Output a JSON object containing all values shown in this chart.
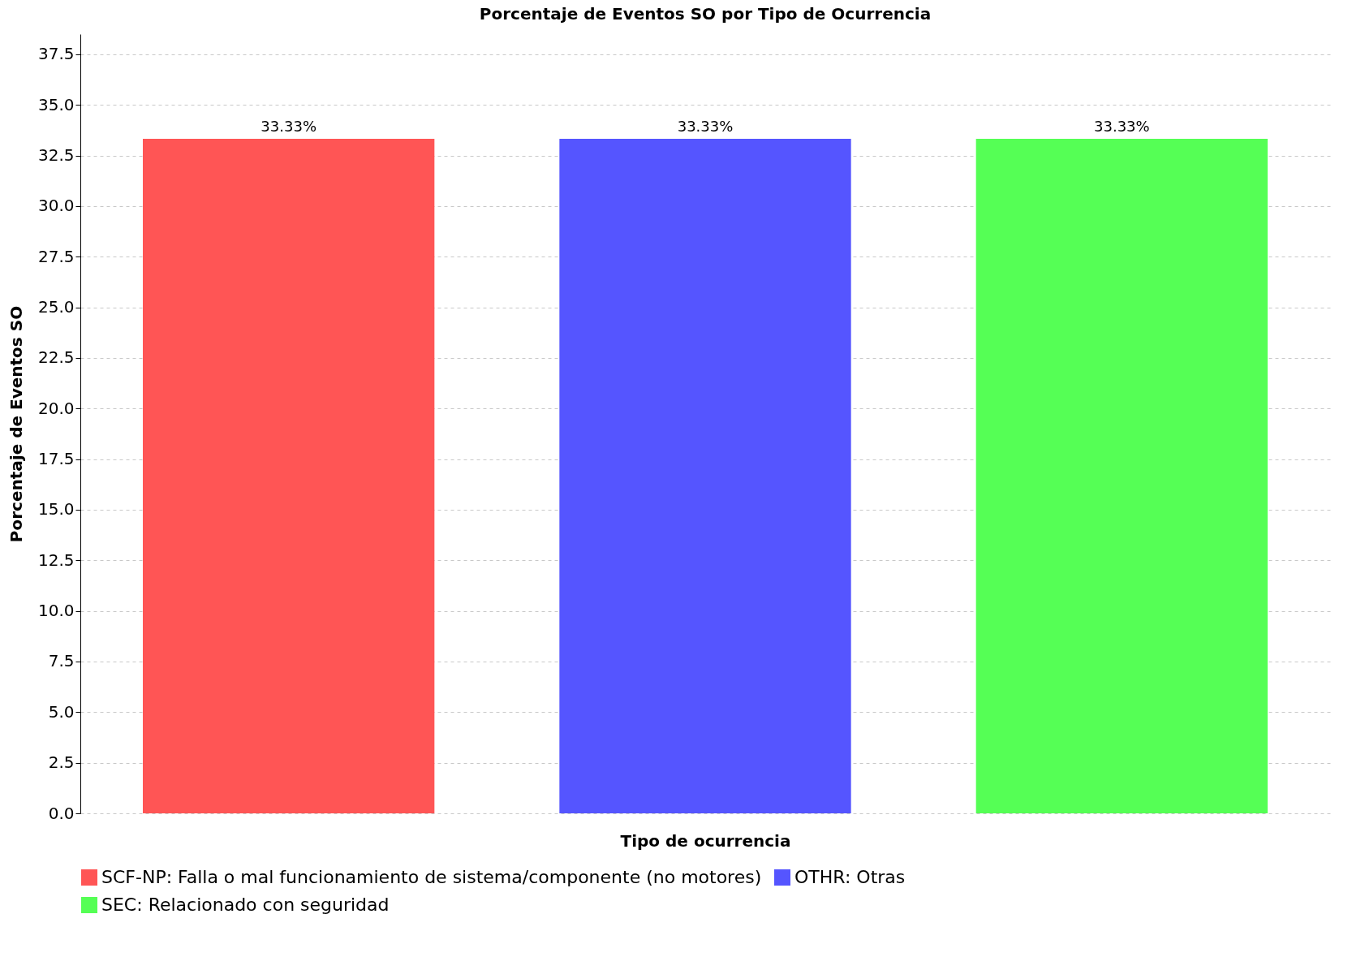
{
  "chart_data": {
    "type": "bar",
    "title": "Porcentaje de Eventos SO por Tipo de Ocurrencia",
    "xlabel": "Tipo de ocurrencia",
    "ylabel": "Porcentaje de Eventos SO",
    "categories": [
      null,
      null,
      null
    ],
    "series": [
      {
        "name": "SCF-NP: Falla o mal funcionamiento de sistema/componente (no motores)",
        "color": "#ff5555",
        "values": [
          33.33,
          null,
          null
        ],
        "value_labels": [
          "33.33%",
          null,
          null
        ]
      },
      {
        "name": "OTHR: Otras",
        "color": "#5555ff",
        "values": [
          null,
          33.33,
          null
        ],
        "value_labels": [
          null,
          "33.33%",
          null
        ]
      },
      {
        "name": "SEC: Relacionado con seguridad",
        "color": "#55ff55",
        "values": [
          null,
          null,
          33.33
        ],
        "value_labels": [
          null,
          null,
          "33.33%"
        ]
      }
    ],
    "ylim": [
      0,
      38.5
    ],
    "yticks": [
      {
        "value": 0,
        "label": "0.0"
      },
      2.5,
      {
        "value": 5,
        "label": "5.0"
      },
      7.5,
      {
        "value": 10,
        "label": "10.0"
      },
      12.5,
      {
        "value": 15,
        "label": "15.0"
      },
      17.5,
      {
        "value": 20,
        "label": "20.0"
      },
      22.5,
      {
        "value": 25,
        "label": "25.0"
      },
      27.5,
      {
        "value": 30,
        "label": "30.0"
      },
      32.5,
      {
        "value": 35,
        "label": "35.0"
      },
      37.5
    ],
    "grid": "y",
    "legend": "bottom",
    "tick_labels": "y"
  }
}
